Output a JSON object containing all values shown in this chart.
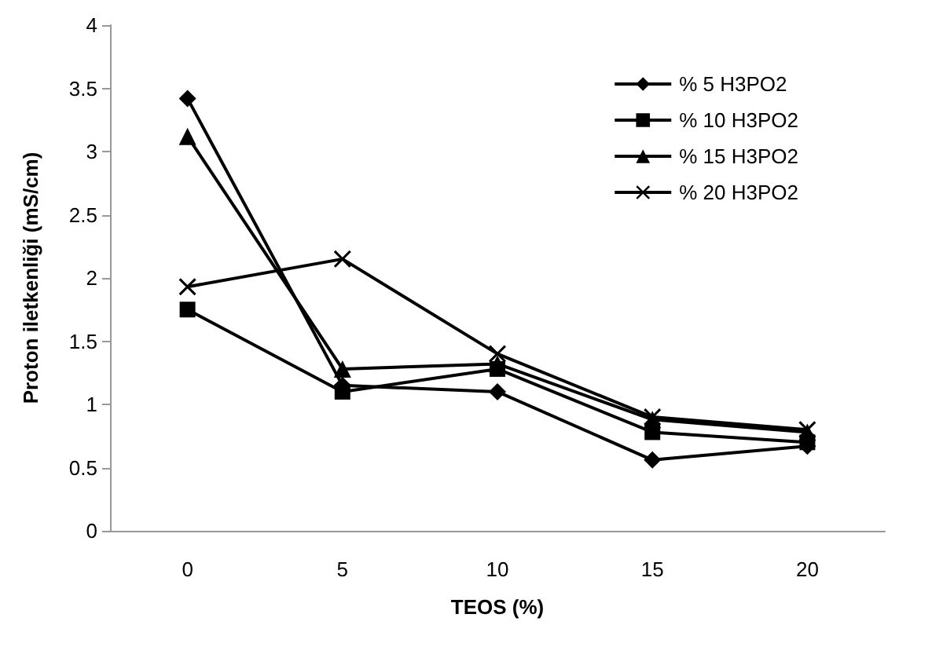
{
  "chart_data": {
    "type": "line",
    "xlabel": "TEOS (%)",
    "ylabel": "Proton iletkenliği (mS/cm)",
    "categories": [
      "0",
      "5",
      "10",
      "15",
      "20"
    ],
    "series": [
      {
        "name": "% 5 H3PO2",
        "color": "#000000",
        "marker": "diamond",
        "values": [
          3.42,
          1.15,
          1.1,
          0.56,
          0.67
        ]
      },
      {
        "name": "% 10 H3PO2",
        "color": "#000000",
        "marker": "square",
        "values": [
          1.75,
          1.1,
          1.28,
          0.78,
          0.7
        ]
      },
      {
        "name": "% 15 H3PO2",
        "color": "#000000",
        "marker": "triangle",
        "values": [
          3.12,
          1.28,
          1.32,
          0.88,
          0.78
        ]
      },
      {
        "name": "% 20 H3PO2",
        "color": "#000000",
        "marker": "cross",
        "values": [
          1.93,
          2.15,
          1.4,
          0.9,
          0.8
        ]
      }
    ],
    "ylim": [
      0,
      4
    ],
    "yticks": [
      0,
      0.5,
      1,
      1.5,
      2,
      2.5,
      3,
      3.5,
      4
    ],
    "grid": false,
    "legend": "top right",
    "line_style": "solid"
  }
}
